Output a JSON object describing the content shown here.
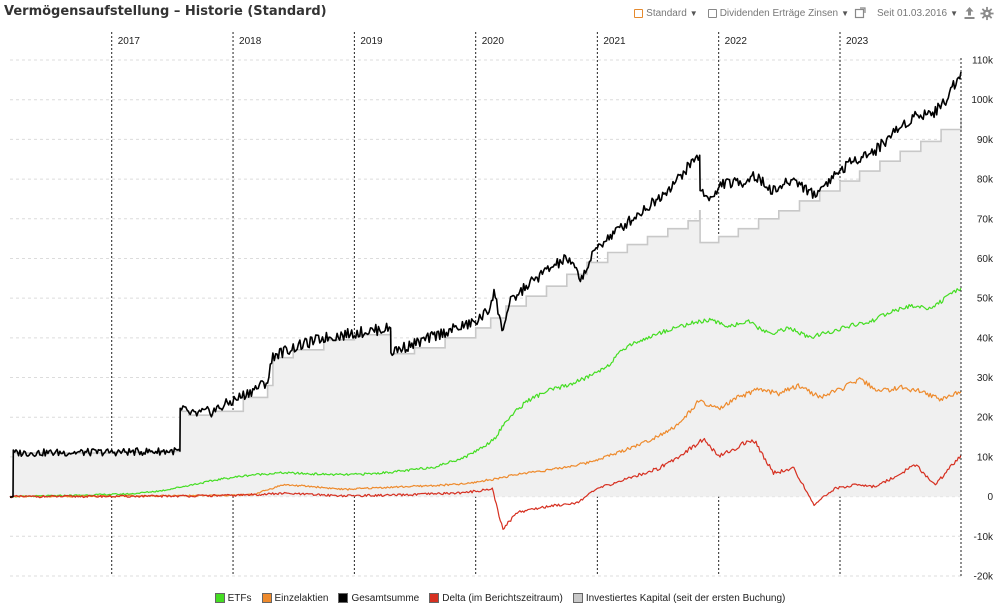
{
  "header": {
    "title": "Vermögensaufstellung – Historie (Standard)",
    "view_select": "Standard",
    "filter_select": "Dividenden Erträge Zinsen",
    "since_select": "Seit 01.03.2016",
    "icons": [
      "calendar-range-icon",
      "export-icon",
      "settings-gear-icon"
    ]
  },
  "chart_data": {
    "type": "line",
    "title": "Vermögensaufstellung – Historie (Standard)",
    "x_range": [
      "2016-03-01",
      "2023-12-31"
    ],
    "ylim": [
      -20000,
      110000
    ],
    "yticks": [
      110000,
      100000,
      90000,
      80000,
      70000,
      60000,
      50000,
      40000,
      30000,
      20000,
      10000,
      0,
      -10000,
      -20000
    ],
    "ytick_labels": [
      "110k",
      "100k",
      "90k",
      "80k",
      "70k",
      "60k",
      "50k",
      "40k",
      "30k",
      "20k",
      "10k",
      "0",
      "-10k",
      "-20k"
    ],
    "year_markers": [
      "2017",
      "2018",
      "2019",
      "2020",
      "2021",
      "2022",
      "2023"
    ],
    "grid": "horizontal dashed, vertical dashed year lines",
    "legend_position": "bottom",
    "series": [
      {
        "name": "Investiertes Kapital (seit der ersten Buchung)",
        "color": "#c8c8c8",
        "style": "area",
        "points": [
          [
            "2016-03-01",
            0
          ],
          [
            "2016-03-10",
            0
          ],
          [
            "2016-03-11",
            11000
          ],
          [
            "2017-01-01",
            11200
          ],
          [
            "2017-07-01",
            11400
          ],
          [
            "2017-07-25",
            11400
          ],
          [
            "2017-07-26",
            21500
          ],
          [
            "2017-08-20",
            21500
          ],
          [
            "2017-08-21",
            20500
          ],
          [
            "2017-11-01",
            21500
          ],
          [
            "2018-02-01",
            25000
          ],
          [
            "2018-04-15",
            28000
          ],
          [
            "2018-05-01",
            35000
          ],
          [
            "2018-07-01",
            37000
          ],
          [
            "2018-10-01",
            39500
          ],
          [
            "2019-01-01",
            40800
          ],
          [
            "2019-04-20",
            41500
          ],
          [
            "2019-04-21",
            36000
          ],
          [
            "2019-07-01",
            37500
          ],
          [
            "2019-10-01",
            40000
          ],
          [
            "2020-01-01",
            42500
          ],
          [
            "2020-02-15",
            45000
          ],
          [
            "2020-04-01",
            48000
          ],
          [
            "2020-06-01",
            50500
          ],
          [
            "2020-08-01",
            53000
          ],
          [
            "2020-10-01",
            56000
          ],
          [
            "2020-12-01",
            59000
          ],
          [
            "2021-02-01",
            61500
          ],
          [
            "2021-04-01",
            63500
          ],
          [
            "2021-06-01",
            65500
          ],
          [
            "2021-08-01",
            67500
          ],
          [
            "2021-10-01",
            69500
          ],
          [
            "2021-11-05",
            72000
          ],
          [
            "2021-11-06",
            64000
          ],
          [
            "2022-01-01",
            65500
          ],
          [
            "2022-03-01",
            67500
          ],
          [
            "2022-05-01",
            70000
          ],
          [
            "2022-07-01",
            72000
          ],
          [
            "2022-09-01",
            74500
          ],
          [
            "2022-11-01",
            77000
          ],
          [
            "2023-01-01",
            79500
          ],
          [
            "2023-03-01",
            82000
          ],
          [
            "2023-05-01",
            84500
          ],
          [
            "2023-07-01",
            87000
          ],
          [
            "2023-09-01",
            89500
          ],
          [
            "2023-11-01",
            92500
          ],
          [
            "2023-12-31",
            95500
          ]
        ]
      },
      {
        "name": "Gesamtsumme",
        "color": "#000000",
        "style": "line",
        "points": [
          [
            "2016-03-01",
            0
          ],
          [
            "2016-03-10",
            0
          ],
          [
            "2016-03-11",
            11000
          ],
          [
            "2017-01-01",
            11200
          ],
          [
            "2017-07-25",
            11500
          ],
          [
            "2017-07-26",
            21500
          ],
          [
            "2017-08-20",
            21800
          ],
          [
            "2017-08-21",
            20500
          ],
          [
            "2017-11-01",
            21500
          ],
          [
            "2018-02-01",
            25500
          ],
          [
            "2018-04-15",
            29000
          ],
          [
            "2018-05-01",
            35500
          ],
          [
            "2018-07-01",
            37500
          ],
          [
            "2018-10-01",
            40000
          ],
          [
            "2019-01-01",
            41200
          ],
          [
            "2019-04-20",
            42500
          ],
          [
            "2019-04-21",
            36500
          ],
          [
            "2019-07-01",
            38500
          ],
          [
            "2019-10-01",
            41500
          ],
          [
            "2020-01-01",
            44000
          ],
          [
            "2020-02-10",
            47000
          ],
          [
            "2020-02-25",
            52000
          ],
          [
            "2020-03-20",
            42000
          ],
          [
            "2020-04-15",
            49000
          ],
          [
            "2020-06-01",
            53000
          ],
          [
            "2020-08-01",
            57000
          ],
          [
            "2020-10-01",
            60000
          ],
          [
            "2020-11-15",
            55000
          ],
          [
            "2021-01-01",
            63000
          ],
          [
            "2021-03-01",
            67000
          ],
          [
            "2021-05-01",
            71000
          ],
          [
            "2021-07-01",
            75000
          ],
          [
            "2021-09-01",
            80000
          ],
          [
            "2021-10-15",
            84500
          ],
          [
            "2021-11-05",
            86000
          ],
          [
            "2021-11-06",
            77000
          ],
          [
            "2021-12-15",
            75000
          ],
          [
            "2022-01-10",
            79000
          ],
          [
            "2022-03-10",
            79000
          ],
          [
            "2022-04-15",
            81000
          ],
          [
            "2022-06-15",
            77000
          ],
          [
            "2022-08-15",
            80000
          ],
          [
            "2022-10-15",
            76000
          ],
          [
            "2022-12-15",
            81000
          ],
          [
            "2023-02-15",
            85000
          ],
          [
            "2023-04-15",
            87000
          ],
          [
            "2023-06-15",
            92000
          ],
          [
            "2023-08-15",
            96000
          ],
          [
            "2023-10-15",
            97000
          ],
          [
            "2023-11-15",
            100000
          ],
          [
            "2023-12-31",
            107000
          ]
        ]
      },
      {
        "name": "ETFs",
        "color": "#44dd22",
        "style": "line",
        "points": [
          [
            "2016-03-01",
            0
          ],
          [
            "2016-09-01",
            300
          ],
          [
            "2017-03-01",
            700
          ],
          [
            "2017-06-01",
            1500
          ],
          [
            "2017-09-01",
            3000
          ],
          [
            "2017-12-01",
            4500
          ],
          [
            "2018-03-01",
            5500
          ],
          [
            "2018-06-01",
            6000
          ],
          [
            "2018-09-01",
            5700
          ],
          [
            "2018-12-01",
            5500
          ],
          [
            "2019-03-01",
            5800
          ],
          [
            "2019-06-01",
            6500
          ],
          [
            "2019-09-01",
            7500
          ],
          [
            "2019-12-01",
            10000
          ],
          [
            "2020-02-01",
            13000
          ],
          [
            "2020-03-01",
            15000
          ],
          [
            "2020-04-01",
            19000
          ],
          [
            "2020-06-01",
            24000
          ],
          [
            "2020-08-01",
            26500
          ],
          [
            "2020-10-01",
            28000
          ],
          [
            "2020-12-01",
            30000
          ],
          [
            "2021-02-01",
            33000
          ],
          [
            "2021-04-01",
            38000
          ],
          [
            "2021-06-01",
            40000
          ],
          [
            "2021-08-01",
            42000
          ],
          [
            "2021-10-01",
            43500
          ],
          [
            "2021-12-01",
            44500
          ],
          [
            "2022-02-01",
            43000
          ],
          [
            "2022-04-01",
            44000
          ],
          [
            "2022-06-01",
            41000
          ],
          [
            "2022-08-01",
            42500
          ],
          [
            "2022-10-01",
            40000
          ],
          [
            "2022-12-01",
            41500
          ],
          [
            "2023-02-01",
            43000
          ],
          [
            "2023-04-01",
            44000
          ],
          [
            "2023-06-01",
            46500
          ],
          [
            "2023-08-01",
            48000
          ],
          [
            "2023-10-01",
            47500
          ],
          [
            "2023-12-31",
            52500
          ]
        ]
      },
      {
        "name": "Einzelaktien",
        "color": "#ee8a2c",
        "style": "line",
        "points": [
          [
            "2016-03-01",
            0
          ],
          [
            "2017-06-01",
            200
          ],
          [
            "2017-12-01",
            300
          ],
          [
            "2018-03-01",
            500
          ],
          [
            "2018-06-01",
            3000
          ],
          [
            "2018-09-01",
            2500
          ],
          [
            "2018-12-01",
            1800
          ],
          [
            "2019-03-01",
            2200
          ],
          [
            "2019-06-01",
            2500
          ],
          [
            "2019-09-01",
            2800
          ],
          [
            "2019-12-01",
            3200
          ],
          [
            "2020-03-01",
            4500
          ],
          [
            "2020-06-01",
            6000
          ],
          [
            "2020-09-01",
            7000
          ],
          [
            "2020-12-01",
            8500
          ],
          [
            "2021-03-01",
            11000
          ],
          [
            "2021-06-01",
            14000
          ],
          [
            "2021-09-01",
            18000
          ],
          [
            "2021-11-01",
            24000
          ],
          [
            "2022-01-01",
            22000
          ],
          [
            "2022-03-01",
            25000
          ],
          [
            "2022-05-01",
            27000
          ],
          [
            "2022-07-01",
            26000
          ],
          [
            "2022-09-01",
            28000
          ],
          [
            "2022-11-01",
            25000
          ],
          [
            "2023-01-01",
            27000
          ],
          [
            "2023-03-01",
            29500
          ],
          [
            "2023-05-01",
            26500
          ],
          [
            "2023-07-01",
            27500
          ],
          [
            "2023-09-01",
            26500
          ],
          [
            "2023-11-01",
            24500
          ],
          [
            "2023-12-31",
            26500
          ]
        ]
      },
      {
        "name": "Delta (im Berichtszeitraum)",
        "color": "#d63021",
        "style": "line",
        "points": [
          [
            "2016-03-01",
            0
          ],
          [
            "2017-06-01",
            100
          ],
          [
            "2018-01-01",
            300
          ],
          [
            "2018-06-01",
            800
          ],
          [
            "2018-12-01",
            200
          ],
          [
            "2019-06-01",
            400
          ],
          [
            "2019-12-01",
            1000
          ],
          [
            "2020-02-20",
            2000
          ],
          [
            "2020-03-23",
            -8500
          ],
          [
            "2020-05-01",
            -4000
          ],
          [
            "2020-08-01",
            -2500
          ],
          [
            "2020-11-01",
            -1500
          ],
          [
            "2021-01-01",
            2000
          ],
          [
            "2021-04-01",
            4500
          ],
          [
            "2021-07-01",
            7000
          ],
          [
            "2021-09-01",
            10000
          ],
          [
            "2021-11-15",
            14500
          ],
          [
            "2022-01-01",
            10000
          ],
          [
            "2022-02-15",
            12000
          ],
          [
            "2022-04-15",
            14500
          ],
          [
            "2022-06-15",
            6000
          ],
          [
            "2022-08-15",
            7000
          ],
          [
            "2022-10-15",
            -2000
          ],
          [
            "2022-12-15",
            2000
          ],
          [
            "2023-02-15",
            3000
          ],
          [
            "2023-04-15",
            2500
          ],
          [
            "2023-06-15",
            5000
          ],
          [
            "2023-08-15",
            8000
          ],
          [
            "2023-10-15",
            3000
          ],
          [
            "2023-12-31",
            10500
          ]
        ]
      }
    ]
  },
  "legend": [
    {
      "label": "ETFs",
      "color": "#44dd22"
    },
    {
      "label": "Einzelaktien",
      "color": "#ee8a2c"
    },
    {
      "label": "Gesamtsumme",
      "color": "#000000"
    },
    {
      "label": "Delta (im Berichtszeitraum)",
      "color": "#d63021"
    },
    {
      "label": "Investiertes Kapital (seit der ersten Buchung)",
      "color": "#c8c8c8"
    }
  ]
}
